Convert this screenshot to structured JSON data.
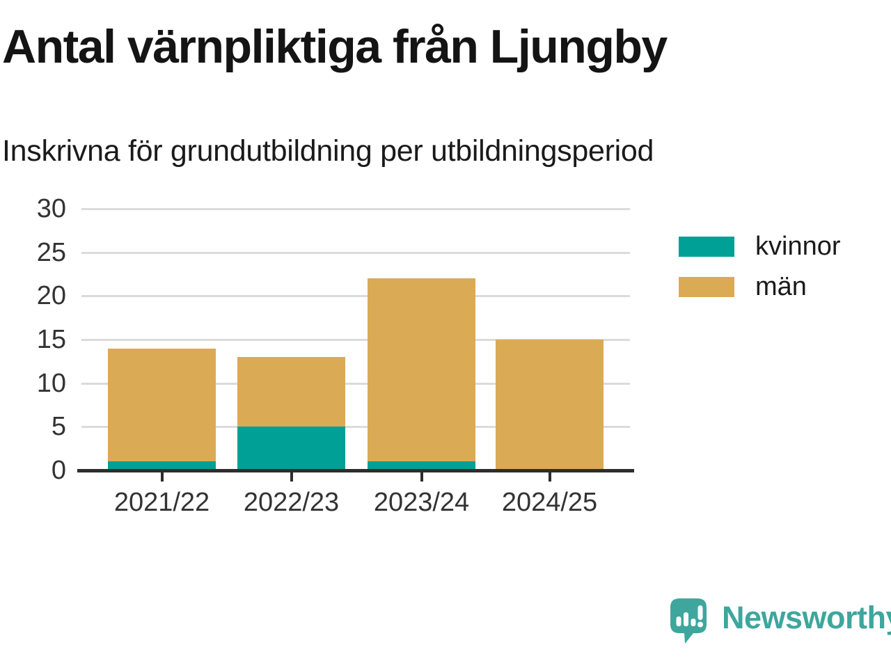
{
  "header": {
    "title": "Antal värnpliktiga från Ljungby",
    "subtitle": "Inskrivna för grundutbildning per utbildningsperiod"
  },
  "chart_data": {
    "type": "bar",
    "stacked": true,
    "title": "Antal värnpliktiga från Ljungby",
    "subtitle": "Inskrivna för grundutbildning per utbildningsperiod",
    "categories": [
      "2021/22",
      "2022/23",
      "2023/24",
      "2024/25"
    ],
    "series": [
      {
        "name": "kvinnor",
        "color": "#00a096",
        "values": [
          1,
          5,
          1,
          0
        ]
      },
      {
        "name": "män",
        "color": "#dbaa55",
        "values": [
          13,
          8,
          21,
          15
        ]
      }
    ],
    "totals": [
      14,
      13,
      22,
      15
    ],
    "xlabel": "",
    "ylabel": "",
    "ylim": [
      0,
      30
    ],
    "yticks": [
      0,
      5,
      10,
      15,
      20,
      25,
      30
    ],
    "grid": "horizontal",
    "legend_position": "right"
  },
  "footer": {
    "brand": "Newsworthy",
    "brand_color": "#3ea69d"
  },
  "colors": {
    "axis": "#2d2d2d",
    "gridline": "#dbdbdb",
    "title_text": "#141414",
    "tick_text": "#333333"
  }
}
